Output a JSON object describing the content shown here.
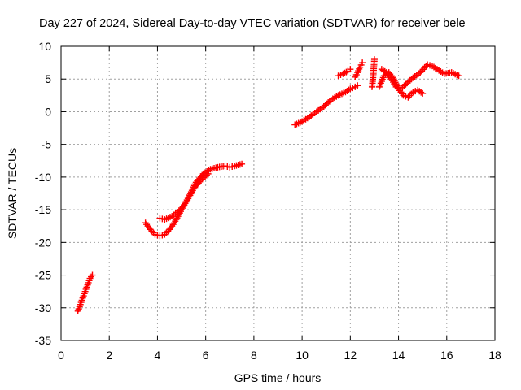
{
  "chart_data": {
    "type": "scatter",
    "title": "Day 227 of 2024, Sidereal Day-to-day VTEC variation (SDTVAR) for receiver bele",
    "xlabel": "GPS time / hours",
    "ylabel": "SDTVAR / TECUs",
    "xlim": [
      0,
      18
    ],
    "ylim": [
      -35,
      10
    ],
    "xticks": [
      0,
      2,
      4,
      6,
      8,
      10,
      12,
      14,
      16,
      18
    ],
    "yticks": [
      10,
      5,
      0,
      -5,
      -10,
      -15,
      -20,
      -25,
      -30,
      -35
    ],
    "grid": true,
    "marker": "+",
    "color": "#ff0000",
    "series": [
      {
        "name": "seg1",
        "x": [
          0.7,
          0.8,
          0.9,
          1.0,
          1.1,
          1.2,
          1.3
        ],
        "y": [
          -30.5,
          -29.5,
          -28.5,
          -27.5,
          -26.5,
          -25.5,
          -25.0
        ]
      },
      {
        "name": "seg2",
        "x": [
          3.5,
          3.7,
          3.9,
          4.1,
          4.3,
          4.5,
          4.7,
          5.0,
          5.3,
          5.6,
          5.9,
          6.2,
          6.5,
          6.8,
          7.0,
          7.2,
          7.5
        ],
        "y": [
          -17.0,
          -18.0,
          -18.8,
          -19.0,
          -18.8,
          -18.0,
          -17.0,
          -15.0,
          -13.0,
          -10.8,
          -9.5,
          -8.8,
          -8.5,
          -8.3,
          -8.5,
          -8.3,
          -8.0
        ]
      },
      {
        "name": "seg3",
        "x": [
          4.1,
          4.3,
          4.6,
          4.9,
          5.2,
          5.5,
          5.8,
          6.1
        ],
        "y": [
          -16.3,
          -16.5,
          -16.0,
          -15.2,
          -13.8,
          -11.8,
          -10.5,
          -9.5
        ]
      },
      {
        "name": "seg4",
        "x": [
          9.7,
          10.0,
          10.3,
          10.6,
          10.9,
          11.2,
          11.5,
          11.8,
          12.0,
          12.2,
          12.3
        ],
        "y": [
          -2.0,
          -1.5,
          -0.8,
          0.0,
          0.8,
          1.8,
          2.5,
          3.0,
          3.5,
          3.8,
          4.0
        ]
      },
      {
        "name": "seg5",
        "x": [
          11.5,
          11.7,
          11.9,
          12.0
        ],
        "y": [
          5.5,
          5.8,
          6.2,
          6.5
        ]
      },
      {
        "name": "seg6",
        "x": [
          12.2,
          12.3,
          12.4,
          12.5
        ],
        "y": [
          5.3,
          6.0,
          6.8,
          7.5
        ]
      },
      {
        "name": "seg7",
        "x": [
          12.9,
          12.95,
          13.0
        ],
        "y": [
          3.8,
          5.5,
          8.0
        ]
      },
      {
        "name": "seg8",
        "x": [
          13.2,
          13.4,
          13.6,
          13.8,
          14.0,
          14.2,
          14.4,
          14.6,
          14.8,
          15.0
        ],
        "y": [
          3.8,
          5.5,
          6.0,
          5.0,
          3.5,
          2.5,
          2.2,
          3.0,
          3.3,
          2.8
        ]
      },
      {
        "name": "seg9",
        "x": [
          13.3,
          13.5,
          13.7,
          13.9,
          14.1,
          14.3,
          14.6,
          14.9,
          15.2,
          15.4,
          15.6,
          15.9,
          16.2,
          16.5
        ],
        "y": [
          6.5,
          6.0,
          5.0,
          3.8,
          3.5,
          4.2,
          5.2,
          6.0,
          7.2,
          7.0,
          6.5,
          5.8,
          6.0,
          5.5
        ]
      }
    ]
  }
}
